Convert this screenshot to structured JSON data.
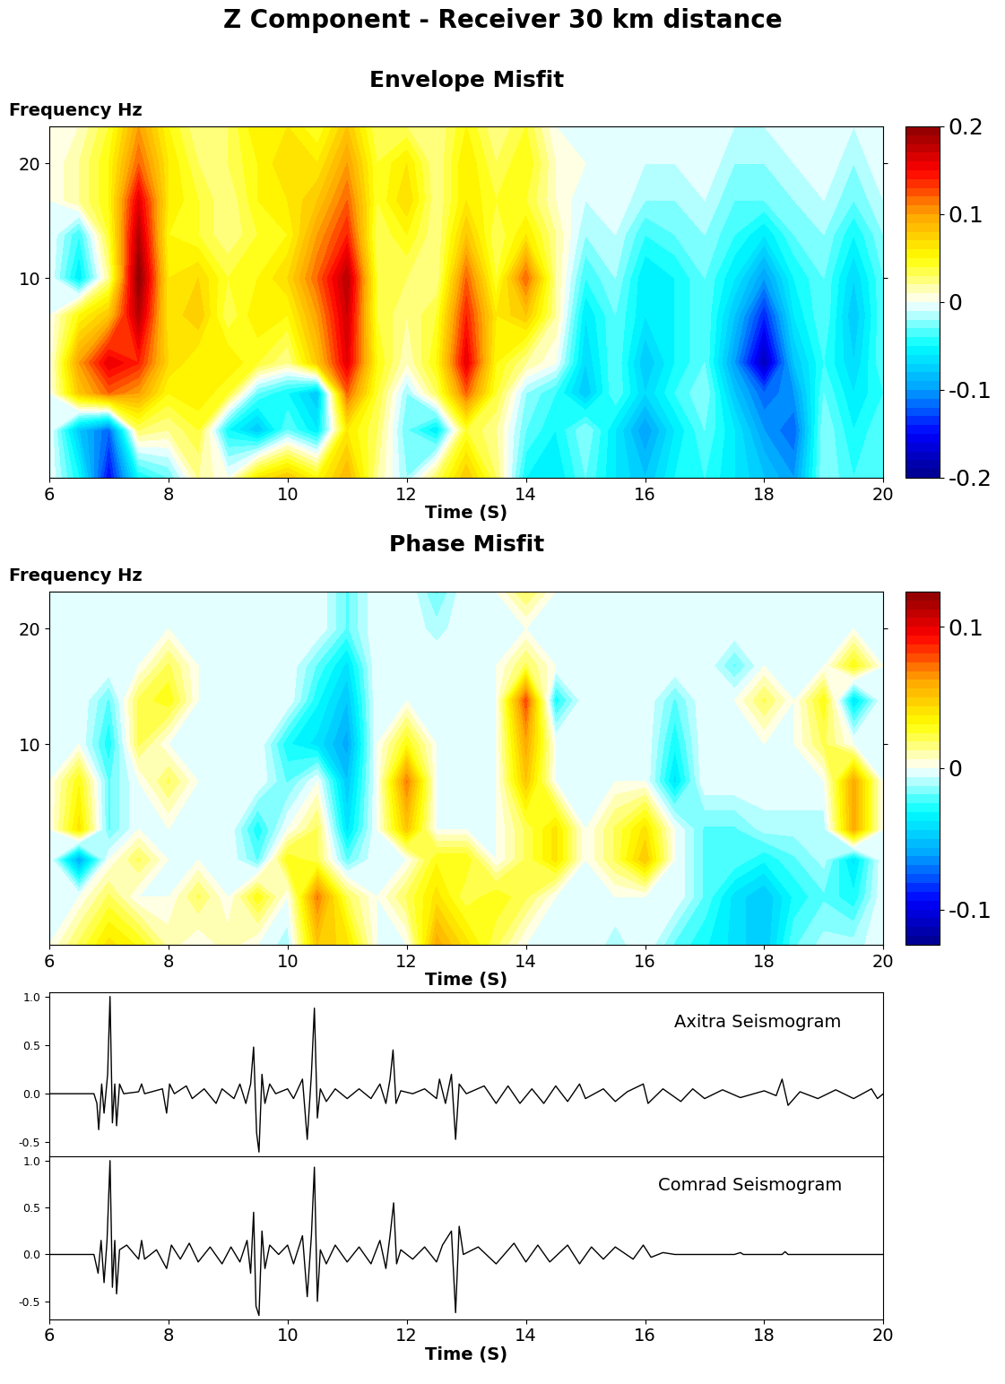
{
  "title": "Z Component - Receiver 30 km distance",
  "chart_data": [
    {
      "type": "heatmap",
      "title": "Envelope Misfit",
      "y_label": "Frequency Hz",
      "x_label": "Time (S)",
      "log": "y",
      "x": [
        6.0,
        6.5,
        7.0,
        7.5,
        8.0,
        8.5,
        9.0,
        9.5,
        10.0,
        10.5,
        11.0,
        11.5,
        12.0,
        12.5,
        13.0,
        13.5,
        14.0,
        14.5,
        15.0,
        15.5,
        16.0,
        16.5,
        17.0,
        17.5,
        18.0,
        18.5,
        19.0,
        19.5,
        20.0
      ],
      "y": [
        3,
        4,
        5,
        6,
        8,
        10,
        13,
        16,
        20,
        25
      ],
      "cells": [
        [
          0,
          -0.05,
          -0.15,
          -0.05,
          -0.03,
          0.02,
          0.0,
          0.06,
          0.08,
          0.05,
          0.09,
          0.02,
          -0.02,
          0.03,
          0.08,
          0.03,
          -0.05,
          -0.06,
          -0.03,
          -0.06,
          -0.08,
          -0.05,
          -0.04,
          -0.06,
          -0.08,
          -0.1,
          -0.02,
          -0.04,
          -0.03
        ],
        [
          0,
          -0.08,
          -0.12,
          0.03,
          0.02,
          0.04,
          -0.05,
          -0.08,
          -0.03,
          -0.06,
          0.06,
          0.03,
          -0.03,
          -0.06,
          0.04,
          0.02,
          -0.03,
          -0.05,
          -0.02,
          -0.06,
          -0.1,
          -0.06,
          -0.03,
          -0.06,
          -0.1,
          -0.12,
          -0.02,
          -0.05,
          -0.03
        ],
        [
          0,
          0.08,
          0.12,
          0.1,
          0.05,
          0.06,
          0.04,
          -0.03,
          -0.05,
          -0.08,
          0.12,
          0.04,
          -0.02,
          0.03,
          0.12,
          0.04,
          -0.02,
          -0.04,
          -0.08,
          -0.03,
          -0.07,
          -0.04,
          -0.02,
          -0.08,
          -0.12,
          -0.1,
          -0.03,
          -0.06,
          -0.04
        ],
        [
          0,
          0.1,
          0.16,
          0.14,
          0.07,
          0.05,
          0.06,
          0.04,
          0.02,
          0.08,
          0.16,
          0.05,
          0.01,
          0.05,
          0.16,
          0.05,
          0.02,
          0.0,
          -0.07,
          -0.03,
          -0.08,
          -0.05,
          -0.03,
          -0.1,
          -0.18,
          -0.08,
          -0.04,
          -0.07,
          -0.03
        ],
        [
          0,
          0.05,
          0.08,
          0.18,
          0.06,
          0.08,
          0.03,
          0.06,
          0.05,
          0.1,
          0.17,
          0.04,
          0.02,
          0.04,
          0.14,
          0.06,
          0.08,
          0.02,
          -0.06,
          -0.03,
          -0.06,
          -0.05,
          -0.03,
          -0.08,
          -0.14,
          -0.06,
          -0.03,
          -0.08,
          -0.03
        ],
        [
          0,
          -0.06,
          0.02,
          0.2,
          0.06,
          0.07,
          0.04,
          0.05,
          0.07,
          0.12,
          0.18,
          0.04,
          0.03,
          0.02,
          0.12,
          0.04,
          0.12,
          0.02,
          -0.04,
          -0.02,
          -0.06,
          -0.05,
          -0.03,
          -0.06,
          -0.1,
          -0.05,
          -0.03,
          -0.07,
          -0.03
        ],
        [
          0,
          -0.04,
          0.04,
          0.18,
          0.05,
          0.04,
          0.02,
          0.04,
          0.05,
          0.1,
          0.14,
          0.03,
          0.05,
          0.02,
          0.08,
          0.03,
          0.06,
          0.02,
          -0.02,
          -0.01,
          -0.04,
          -0.03,
          -0.02,
          -0.04,
          -0.06,
          -0.03,
          -0.02,
          -0.05,
          -0.02
        ],
        [
          0,
          0.02,
          0.05,
          0.16,
          0.06,
          0.04,
          0.02,
          0.05,
          0.06,
          0.08,
          0.12,
          0.04,
          0.07,
          0.02,
          0.06,
          0.04,
          0.04,
          0.01,
          -0.01,
          0.0,
          -0.02,
          -0.02,
          -0.01,
          -0.03,
          -0.03,
          -0.02,
          -0.01,
          -0.03,
          -0.01
        ],
        [
          0,
          0.02,
          0.05,
          0.12,
          0.06,
          0.03,
          0.03,
          0.05,
          0.07,
          0.06,
          0.1,
          0.04,
          0.06,
          0.02,
          0.06,
          0.03,
          0.05,
          0.01,
          0.0,
          0.0,
          -0.01,
          -0.01,
          0.0,
          -0.02,
          -0.02,
          -0.01,
          0.0,
          -0.02,
          0.0
        ],
        [
          0,
          0.01,
          0.04,
          0.1,
          0.05,
          0.02,
          0.03,
          0.06,
          0.06,
          0.04,
          0.08,
          0.03,
          0.03,
          0.02,
          0.05,
          0.02,
          0.04,
          0.0,
          0.0,
          0.0,
          0.0,
          0.0,
          0.0,
          -0.01,
          -0.01,
          0.0,
          0.0,
          -0.01,
          0.0
        ]
      ],
      "xlim": [
        6,
        20
      ],
      "xticks": [
        6,
        8,
        10,
        12,
        14,
        16,
        18,
        20
      ],
      "ylim": [
        3,
        25
      ],
      "yticks": [
        10,
        20
      ],
      "color_range": [
        -0.2,
        0.2
      ],
      "color_ticks": [
        -0.2,
        -0.1,
        0,
        0.1,
        0.2
      ]
    },
    {
      "type": "heatmap",
      "title": "Phase Misfit",
      "y_label": "Frequency Hz",
      "x_label": "Time (S)",
      "log": "y",
      "x": [
        6.0,
        6.5,
        7.0,
        7.5,
        8.0,
        8.5,
        9.0,
        9.5,
        10.0,
        10.5,
        11.0,
        11.5,
        12.0,
        12.5,
        13.0,
        13.5,
        14.0,
        14.5,
        15.0,
        15.5,
        16.0,
        16.5,
        17.0,
        17.5,
        18.0,
        18.5,
        19.0,
        19.5,
        20.0
      ],
      "y": [
        3,
        4,
        5,
        6,
        8,
        10,
        13,
        16,
        20,
        25
      ],
      "cells": [
        [
          0,
          0.02,
          0.04,
          0.03,
          0.01,
          0.0,
          0.01,
          0.0,
          -0.01,
          0.05,
          0.04,
          0.0,
          0.0,
          0.06,
          0.04,
          0.02,
          0.0,
          0.0,
          0.0,
          -0.01,
          0.0,
          -0.02,
          -0.03,
          -0.04,
          -0.05,
          -0.02,
          -0.01,
          -0.01,
          0.0
        ],
        [
          0,
          0.0,
          0.02,
          0.0,
          0.0,
          0.02,
          0.0,
          0.03,
          0.0,
          0.07,
          0.02,
          0.0,
          0.02,
          0.04,
          0.02,
          0.03,
          0.02,
          0.0,
          0.0,
          0.0,
          0.0,
          0.0,
          -0.02,
          -0.04,
          -0.05,
          -0.03,
          -0.02,
          -0.03,
          0.0
        ],
        [
          0,
          -0.06,
          0.0,
          0.02,
          0.0,
          0.0,
          0.0,
          -0.02,
          0.03,
          0.02,
          -0.02,
          0.0,
          0.0,
          0.03,
          0.03,
          0.0,
          0.02,
          0.04,
          0.0,
          0.02,
          0.05,
          0.0,
          -0.02,
          -0.02,
          -0.03,
          -0.02,
          -0.01,
          -0.04,
          0.0
        ],
        [
          0,
          0.04,
          -0.02,
          0.0,
          0.0,
          0.0,
          0.0,
          -0.03,
          0.0,
          0.02,
          -0.04,
          0.0,
          0.05,
          0.0,
          0.0,
          0.0,
          0.02,
          0.04,
          0.0,
          0.02,
          0.04,
          0.0,
          -0.02,
          -0.02,
          -0.01,
          -0.01,
          -0.01,
          0.06,
          0.0
        ],
        [
          0,
          0.03,
          -0.02,
          0.0,
          0.02,
          0.0,
          0.0,
          0.0,
          -0.02,
          0.0,
          -0.05,
          0.0,
          0.07,
          0.0,
          0.0,
          0.0,
          0.05,
          0.0,
          0.0,
          0.0,
          0.0,
          -0.04,
          0.0,
          0.0,
          0.0,
          0.0,
          0.0,
          0.06,
          0.0
        ],
        [
          0,
          0.0,
          -0.03,
          0.02,
          0.0,
          0.0,
          0.0,
          0.0,
          -0.03,
          -0.04,
          -0.06,
          0.0,
          0.03,
          0.0,
          0.0,
          0.0,
          0.06,
          0.0,
          0.0,
          0.0,
          0.0,
          -0.03,
          0.0,
          0.0,
          0.0,
          0.0,
          0.02,
          0.0,
          0.0
        ],
        [
          0,
          0.0,
          -0.02,
          0.02,
          0.03,
          0.0,
          0.0,
          0.0,
          0.0,
          -0.03,
          -0.05,
          0.0,
          0.0,
          0.0,
          0.0,
          0.0,
          0.08,
          -0.03,
          0.0,
          0.0,
          0.0,
          -0.02,
          0.0,
          0.0,
          0.02,
          0.0,
          0.03,
          -0.04,
          0.0
        ],
        [
          0,
          0.0,
          0.0,
          0.0,
          0.02,
          0.0,
          0.0,
          0.0,
          0.0,
          -0.02,
          -0.04,
          0.0,
          0.0,
          0.0,
          0.0,
          0.0,
          0.02,
          0.0,
          0.0,
          0.0,
          0.0,
          0.0,
          0.0,
          -0.02,
          0.0,
          0.0,
          0.0,
          0.03,
          0.0
        ],
        [
          0,
          0,
          0,
          0,
          0,
          0,
          0,
          0,
          0,
          0,
          -0.02,
          0,
          0,
          -0.01,
          0,
          0,
          0,
          0,
          0,
          0,
          0,
          0,
          0,
          0,
          0,
          0,
          0,
          0,
          0
        ],
        [
          0,
          0,
          0,
          0,
          0,
          0,
          0,
          0,
          0,
          0,
          -0.02,
          0,
          0,
          -0.02,
          0,
          0,
          0.02,
          0,
          0,
          0,
          0,
          0,
          0,
          0,
          0,
          0,
          0,
          0,
          0
        ]
      ],
      "xlim": [
        6,
        20
      ],
      "xticks": [
        6,
        8,
        10,
        12,
        14,
        16,
        18,
        20
      ],
      "ylim": [
        3,
        25
      ],
      "yticks": [
        10,
        20
      ],
      "color_range": [
        -0.125,
        0.125
      ],
      "color_ticks": [
        -0.1,
        0,
        0.1
      ]
    },
    {
      "type": "line",
      "annotation": "Axitra Seismogram",
      "color": "#000000",
      "tick_labels": "y",
      "x": [
        6.0,
        6.75,
        6.8,
        6.83,
        6.88,
        6.92,
        6.98,
        7.02,
        7.06,
        7.1,
        7.13,
        7.18,
        7.25,
        7.5,
        7.55,
        7.6,
        7.9,
        7.97,
        8.02,
        8.1,
        8.3,
        8.4,
        8.6,
        8.8,
        8.9,
        9.1,
        9.2,
        9.3,
        9.38,
        9.43,
        9.48,
        9.52,
        9.57,
        9.62,
        9.7,
        9.8,
        10.0,
        10.1,
        10.25,
        10.33,
        10.4,
        10.45,
        10.5,
        10.55,
        10.65,
        10.8,
        11.0,
        11.2,
        11.4,
        11.55,
        11.65,
        11.72,
        11.77,
        11.82,
        11.9,
        12.1,
        12.3,
        12.5,
        12.55,
        12.65,
        12.75,
        12.82,
        12.88,
        13.0,
        13.3,
        13.5,
        13.7,
        13.9,
        14.1,
        14.3,
        14.5,
        14.7,
        14.9,
        15.0,
        15.3,
        15.5,
        15.7,
        15.97,
        16.05,
        16.3,
        16.6,
        16.8,
        17.0,
        17.3,
        17.6,
        18.0,
        18.2,
        18.3,
        18.4,
        18.6,
        18.9,
        19.2,
        19.5,
        19.8,
        19.9,
        20.0
      ],
      "values": [
        0,
        0,
        -0.1,
        -0.37,
        0.1,
        -0.2,
        0.2,
        1.0,
        -0.3,
        0.1,
        -0.33,
        0.1,
        0.0,
        0.02,
        0.1,
        0.0,
        0.05,
        -0.2,
        0.1,
        0.0,
        0.08,
        -0.05,
        0.05,
        -0.1,
        0.05,
        -0.05,
        0.1,
        -0.1,
        0.1,
        0.48,
        -0.4,
        -0.6,
        0.2,
        -0.1,
        0.1,
        0.0,
        0.05,
        -0.05,
        0.15,
        -0.47,
        0.2,
        0.88,
        -0.25,
        0.05,
        -0.08,
        0.05,
        -0.05,
        0.05,
        -0.05,
        0.1,
        -0.1,
        0.15,
        0.45,
        -0.1,
        0.03,
        0.0,
        0.05,
        -0.05,
        0.15,
        -0.1,
        0.2,
        -0.47,
        0.1,
        0.0,
        0.08,
        -0.1,
        0.08,
        -0.1,
        0.05,
        -0.1,
        0.08,
        -0.08,
        0.1,
        -0.05,
        0.05,
        -0.08,
        0.02,
        0.1,
        -0.1,
        0.05,
        -0.08,
        0.05,
        -0.05,
        0.04,
        -0.04,
        0.03,
        -0.02,
        0.15,
        -0.12,
        0.02,
        -0.05,
        0.04,
        -0.05,
        0.05,
        -0.05,
        0.0
      ],
      "xlim": [
        6,
        20
      ],
      "xticks": [
        6,
        8,
        10,
        12,
        14,
        16,
        18,
        20
      ],
      "ylim": [
        -0.64,
        1.04
      ],
      "yticks": [
        {
          "value": -0.5,
          "label": "-0.5"
        },
        {
          "value": 0,
          "label": "0.0"
        },
        {
          "value": 0.5,
          "label": "0.5"
        },
        {
          "value": 1,
          "label": "1.0"
        }
      ]
    },
    {
      "type": "line",
      "annotation": "Comrad Seismogram",
      "color": "#000000",
      "x_label": "Time (S)",
      "x": [
        6.0,
        6.75,
        6.82,
        6.87,
        6.92,
        6.97,
        7.02,
        7.06,
        7.1,
        7.13,
        7.18,
        7.3,
        7.5,
        7.55,
        7.6,
        7.8,
        7.97,
        8.05,
        8.2,
        8.35,
        8.5,
        8.7,
        8.9,
        9.05,
        9.2,
        9.32,
        9.38,
        9.43,
        9.47,
        9.52,
        9.57,
        9.62,
        9.7,
        9.85,
        10.0,
        10.1,
        10.25,
        10.33,
        10.4,
        10.45,
        10.5,
        10.55,
        10.65,
        10.8,
        11.0,
        11.2,
        11.4,
        11.55,
        11.65,
        11.72,
        11.78,
        11.83,
        11.9,
        12.1,
        12.3,
        12.5,
        12.6,
        12.75,
        12.82,
        12.88,
        12.95,
        13.2,
        13.5,
        13.8,
        14.0,
        14.2,
        14.4,
        14.7,
        14.9,
        15.1,
        15.3,
        15.5,
        15.8,
        15.97,
        16.1,
        16.3,
        16.5,
        17.5,
        17.6,
        17.65,
        18.3,
        18.35,
        18.4,
        20.0
      ],
      "values": [
        0,
        0,
        -0.2,
        0.15,
        -0.3,
        0.15,
        1.0,
        -0.35,
        0.15,
        -0.42,
        0.05,
        0.1,
        -0.05,
        0.15,
        -0.05,
        0.05,
        -0.15,
        0.1,
        -0.05,
        0.12,
        -0.08,
        0.08,
        -0.1,
        0.08,
        -0.08,
        0.15,
        -0.2,
        0.45,
        -0.55,
        -0.65,
        0.25,
        -0.15,
        0.1,
        0.0,
        0.1,
        -0.1,
        0.2,
        -0.45,
        0.2,
        0.93,
        -0.5,
        0.05,
        -0.1,
        0.1,
        -0.08,
        0.08,
        -0.1,
        0.15,
        -0.15,
        0.2,
        0.55,
        -0.1,
        0.05,
        -0.05,
        0.08,
        -0.08,
        0.1,
        0.25,
        -0.62,
        0.3,
        0.0,
        0.08,
        -0.1,
        0.12,
        -0.08,
        0.1,
        -0.08,
        0.1,
        -0.1,
        0.08,
        -0.05,
        0.08,
        -0.05,
        0.1,
        -0.03,
        0.02,
        0.0,
        0.0,
        0.02,
        0.0,
        0.0,
        0.03,
        0.0,
        0.0
      ],
      "xlim": [
        6,
        20
      ],
      "xticks": [
        6,
        8,
        10,
        12,
        14,
        16,
        18,
        20
      ],
      "ylim": [
        -0.69,
        1.05
      ],
      "yticks": [
        {
          "value": -0.5,
          "label": "-0.5"
        },
        {
          "value": 0,
          "label": "0.0"
        },
        {
          "value": 0.5,
          "label": "0.5"
        },
        {
          "value": 1,
          "label": "1.0"
        }
      ]
    }
  ]
}
